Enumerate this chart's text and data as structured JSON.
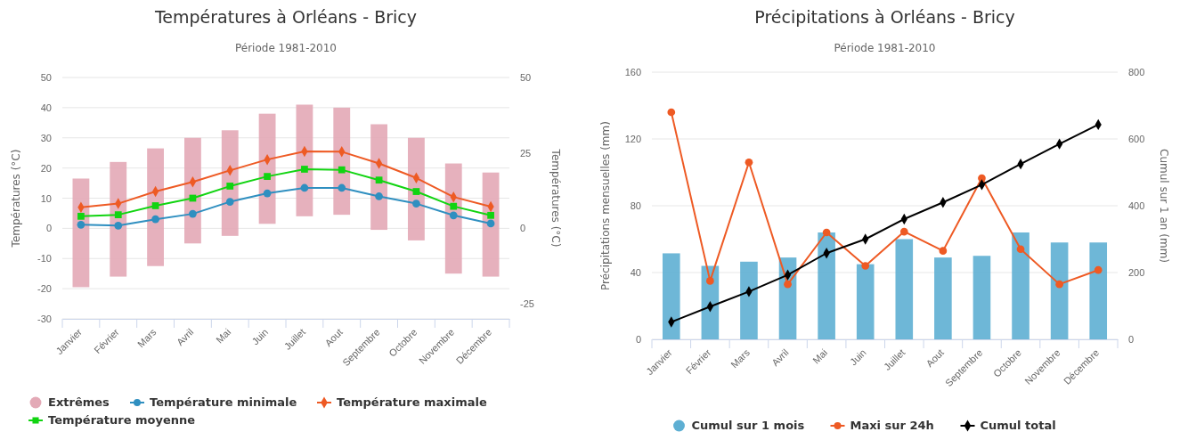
{
  "chart_data": [
    {
      "type": "bar",
      "title": "Températures à Orléans - Bricy",
      "subtitle": "Période 1981-2010",
      "ylabel": "Températures (°C)",
      "y2label": "Températures (°C)",
      "categories": [
        "Janvier",
        "Février",
        "Mars",
        "Avril",
        "Mai",
        "Juin",
        "Juillet",
        "Aout",
        "Septembre",
        "Octobre",
        "Novembre",
        "Décembre"
      ],
      "ylim": [
        -30,
        50
      ],
      "yticks": [
        -30,
        -20,
        -10,
        0,
        10,
        20,
        30,
        40,
        50
      ],
      "y2lim": [
        -30,
        50
      ],
      "y2ticks": [
        -25,
        0,
        25,
        50
      ],
      "grid": "y",
      "legend": "bottom",
      "series": [
        {
          "name": "Extrêmes",
          "color": "#e3a9b6",
          "marker": "circle",
          "base": [
            -19.5,
            -16,
            -12.5,
            -5,
            -2.5,
            1.5,
            4,
            4.5,
            -0.5,
            -4,
            -15,
            -16
          ],
          "values": [
            36,
            38,
            39,
            35,
            35,
            36.5,
            37,
            35.5,
            35,
            34,
            36.5,
            34.5
          ]
        },
        {
          "name": "Température minimale",
          "type": "line",
          "color": "#2f8fc0",
          "marker": "circle",
          "values": [
            1.2,
            0.9,
            3,
            4.8,
            8.8,
            11.6,
            13.4,
            13.4,
            10.6,
            8.2,
            4.3,
            1.6
          ]
        },
        {
          "name": "Température maximale",
          "type": "line",
          "color": "#ee5a24",
          "marker": "diamond",
          "values": [
            7,
            8.2,
            12.2,
            15.4,
            19.2,
            22.8,
            25.5,
            25.4,
            21.5,
            16.7,
            10.4,
            7.2
          ]
        },
        {
          "name": "Température moyenne",
          "type": "line",
          "color": "#11d411",
          "marker": "square",
          "values": [
            4,
            4.5,
            7.5,
            10,
            14,
            17.2,
            19.6,
            19.4,
            16,
            12.2,
            7.3,
            4.3
          ]
        }
      ]
    },
    {
      "type": "bar",
      "title": "Précipitations à Orléans - Bricy",
      "subtitle": "Période 1981-2010",
      "ylabel": "Précipitations mensuelles (mm)",
      "y2label": "Cumul sur 1 an (mm)",
      "categories": [
        "Janvier",
        "Février",
        "Mars",
        "Avril",
        "Mai",
        "Juin",
        "Juillet",
        "Aout",
        "Septembre",
        "Octobre",
        "Novembre",
        "Décembre"
      ],
      "ylim": [
        0,
        160
      ],
      "yticks": [
        0,
        40,
        80,
        120,
        160
      ],
      "y2lim": [
        0,
        800
      ],
      "y2ticks": [
        0,
        200,
        400,
        600,
        800
      ],
      "grid": "y",
      "legend": "bottom",
      "series": [
        {
          "name": "Cumul sur 1 mois",
          "color": "#5eafd3",
          "marker": "circle",
          "values": [
            51.5,
            44,
            46.5,
            49,
            64,
            45,
            60,
            49,
            50,
            64,
            58,
            58
          ]
        },
        {
          "name": "Maxi sur 24h",
          "type": "line",
          "color": "#ee5a24",
          "marker": "circle",
          "values": [
            136,
            35,
            106,
            33,
            64,
            44,
            64.5,
            53,
            96.5,
            54,
            33,
            41.5
          ]
        },
        {
          "name": "Cumul total",
          "type": "line",
          "axis": "y2",
          "color": "#000000",
          "marker": "diamond",
          "values": [
            52,
            98,
            143,
            193,
            258,
            300,
            360,
            410,
            463,
            525,
            585,
            643
          ]
        }
      ]
    }
  ]
}
